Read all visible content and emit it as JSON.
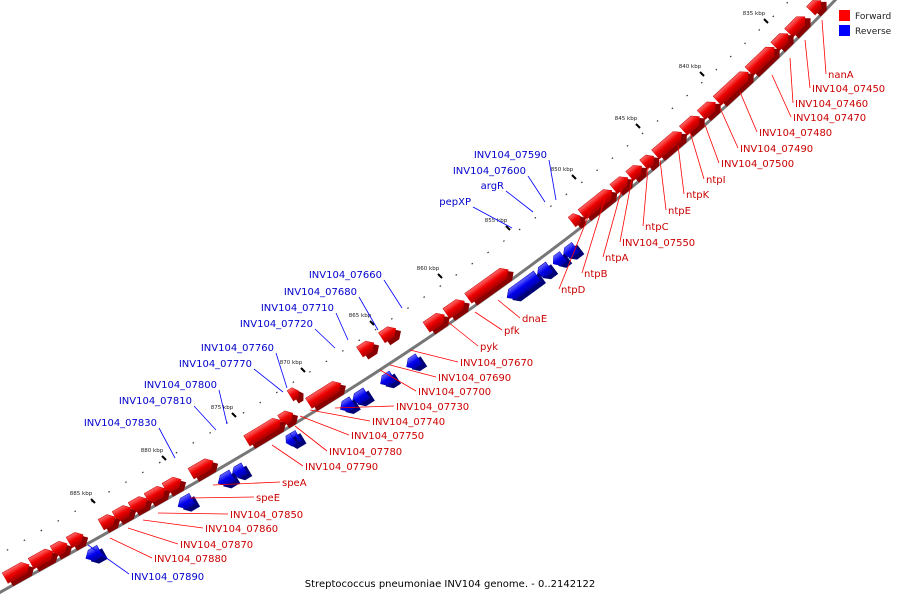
{
  "legend": {
    "forward": "Forward",
    "reverse": "Reverse",
    "forward_color": "#ff0000",
    "reverse_color": "#0000ff"
  },
  "caption": "Streptococcus pneumoniae INV104 genome. - 0..2142122",
  "ticks": [
    "835 kbp",
    "840 kbp",
    "845 kbp",
    "850 kbp",
    "855 kbp",
    "860 kbp",
    "865 kbp",
    "870 kbp",
    "875 kbp",
    "880 kbp",
    "885 kbp"
  ],
  "forward_labels": [
    "nanA",
    "INV104_07450",
    "INV104_07460",
    "INV104_07470",
    "INV104_07480",
    "INV104_07490",
    "INV104_07500",
    "ntpI",
    "ntpK",
    "ntpE",
    "ntpC",
    "INV104_07550",
    "ntpA",
    "ntpB",
    "ntpD",
    "dnaE",
    "pfk",
    "pyk",
    "INV104_07670",
    "INV104_07690",
    "INV104_07700",
    "INV104_07730",
    "INV104_07740",
    "INV104_07750",
    "INV104_07780",
    "INV104_07790",
    "speA",
    "speE",
    "INV104_07850",
    "INV104_07860",
    "INV104_07870",
    "INV104_07880"
  ],
  "reverse_labels": [
    "INV104_07590",
    "INV104_07600",
    "argR",
    "pepXP",
    "INV104_07660",
    "INV104_07680",
    "INV104_07710",
    "INV104_07720",
    "INV104_07760",
    "INV104_07770",
    "INV104_07800",
    "INV104_07810",
    "INV104_07830",
    "INV104_07890"
  ]
}
